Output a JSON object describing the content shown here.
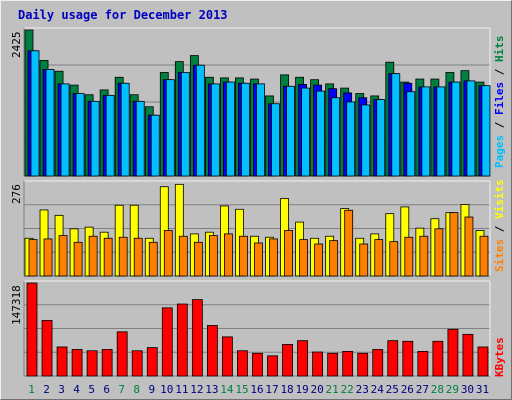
{
  "title": "Daily usage for December 2013",
  "chart_data": [
    {
      "type": "bar",
      "panel": "pages-files-hits",
      "categories": [
        "1",
        "2",
        "3",
        "4",
        "5",
        "6",
        "7",
        "8",
        "9",
        "10",
        "11",
        "12",
        "13",
        "14",
        "15",
        "16",
        "17",
        "18",
        "19",
        "20",
        "21",
        "22",
        "23",
        "24",
        "25",
        "26",
        "27",
        "28",
        "29",
        "30",
        "31"
      ],
      "max_label": "2425",
      "ylim": [
        0,
        2425
      ],
      "series": [
        {
          "name": "Hits",
          "color": "#008040",
          "values": [
            2425,
            1920,
            1740,
            1510,
            1350,
            1430,
            1640,
            1350,
            1150,
            1720,
            1900,
            2000,
            1640,
            1630,
            1630,
            1610,
            1330,
            1680,
            1640,
            1600,
            1530,
            1460,
            1370,
            1330,
            1890,
            1560,
            1610,
            1610,
            1720,
            1750,
            1560
          ]
        },
        {
          "name": "Files",
          "color": "#0000ff",
          "values": [
            2080,
            1770,
            1530,
            1370,
            1240,
            1340,
            1540,
            1240,
            1010,
            1600,
            1720,
            1840,
            1530,
            1560,
            1540,
            1530,
            1200,
            1490,
            1520,
            1510,
            1450,
            1380,
            1300,
            1270,
            1700,
            1540,
            1480,
            1480,
            1560,
            1580,
            1500
          ]
        },
        {
          "name": "Pages",
          "color": "#00c0ff",
          "values": [
            2080,
            1770,
            1530,
            1370,
            1240,
            1340,
            1540,
            1240,
            1010,
            1600,
            1720,
            1840,
            1530,
            1560,
            1540,
            1530,
            1200,
            1490,
            1460,
            1410,
            1300,
            1230,
            1180,
            1270,
            1700,
            1400,
            1480,
            1480,
            1560,
            1580,
            1500
          ]
        }
      ]
    },
    {
      "type": "bar",
      "panel": "visits-sites",
      "categories": [
        "1",
        "2",
        "3",
        "4",
        "5",
        "6",
        "7",
        "8",
        "9",
        "10",
        "11",
        "12",
        "13",
        "14",
        "15",
        "16",
        "17",
        "18",
        "19",
        "20",
        "21",
        "22",
        "23",
        "24",
        "25",
        "26",
        "27",
        "28",
        "29",
        "30",
        "31"
      ],
      "max_label": "276",
      "ylim": [
        0,
        276
      ],
      "series": [
        {
          "name": "Visits",
          "color": "#ffff00",
          "values": [
            112,
            196,
            180,
            140,
            145,
            130,
            210,
            210,
            112,
            265,
            272,
            125,
            130,
            208,
            198,
            118,
            115,
            230,
            160,
            112,
            118,
            200,
            112,
            125,
            185,
            205,
            142,
            170,
            188,
            212,
            135
          ]
        },
        {
          "name": "Sites",
          "color": "#ff8000",
          "values": [
            108,
            110,
            120,
            100,
            118,
            112,
            115,
            112,
            100,
            135,
            118,
            100,
            120,
            125,
            118,
            98,
            110,
            135,
            108,
            95,
            105,
            195,
            95,
            108,
            102,
            115,
            118,
            140,
            188,
            175,
            118
          ]
        }
      ]
    },
    {
      "type": "bar",
      "panel": "kbytes",
      "categories": [
        "1",
        "2",
        "3",
        "4",
        "5",
        "6",
        "7",
        "8",
        "9",
        "10",
        "11",
        "12",
        "13",
        "14",
        "15",
        "16",
        "17",
        "18",
        "19",
        "20",
        "21",
        "22",
        "23",
        "24",
        "25",
        "26",
        "27",
        "28",
        "29",
        "30",
        "31"
      ],
      "max_label": "147318",
      "ylim": [
        0,
        147318
      ],
      "series": [
        {
          "name": "KBytes",
          "color": "#ff0000",
          "values": [
            147318,
            88000,
            46000,
            42000,
            40000,
            42000,
            70000,
            40000,
            45000,
            108000,
            114000,
            121000,
            80000,
            62000,
            40000,
            36000,
            32000,
            50000,
            56000,
            38000,
            36000,
            39000,
            36000,
            42000,
            56000,
            55000,
            39000,
            55000,
            74000,
            66000,
            46000
          ]
        }
      ]
    }
  ],
  "side_labels": {
    "top": {
      "pages": "Pages",
      "sep1": " / ",
      "files": "Files",
      "sep2": " / ",
      "hits": "Hits"
    },
    "middle": {
      "sites": "Sites",
      "sep": " / ",
      "visits": "Visits"
    },
    "bottom": {
      "kbytes": "KBytes"
    }
  },
  "colors": {
    "plot_bg": "#c0c0c0",
    "title": "#0000c0",
    "weekend_label": "#008040",
    "weekday_label": "#000080",
    "pages_label": "#00c0ff",
    "files_label": "#0000ff",
    "hits_label": "#008040",
    "visits_label": "#ffff00",
    "sites_label": "#ff8000",
    "kbytes_label": "#ff0000"
  },
  "weekend_days": [
    "1",
    "7",
    "8",
    "14",
    "15",
    "21",
    "22",
    "28",
    "29"
  ]
}
